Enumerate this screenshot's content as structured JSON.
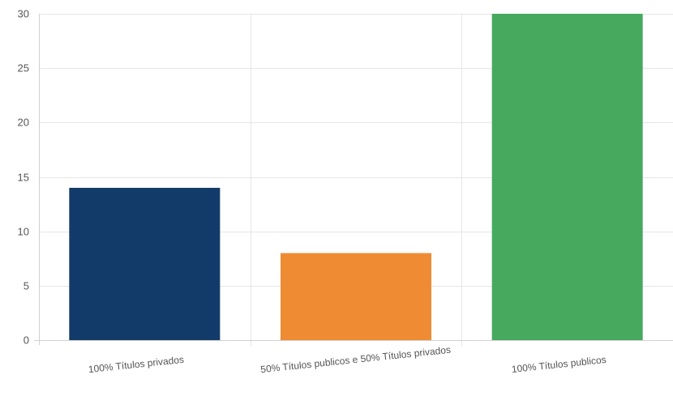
{
  "chart_data": {
    "type": "bar",
    "categories": [
      "100% Títulos privados",
      "50% Títulos publicos e 50% Títulos privados",
      "100% Títulos publicos"
    ],
    "values": [
      14,
      8,
      30
    ],
    "colors": [
      "#133b69",
      "#ef8c33",
      "#47a95e"
    ],
    "ylim": [
      0,
      30
    ],
    "yticks": [
      0,
      5,
      10,
      15,
      20,
      25,
      30
    ],
    "grid": true,
    "legend": "none",
    "title": "",
    "xlabel": "",
    "ylabel": ""
  }
}
